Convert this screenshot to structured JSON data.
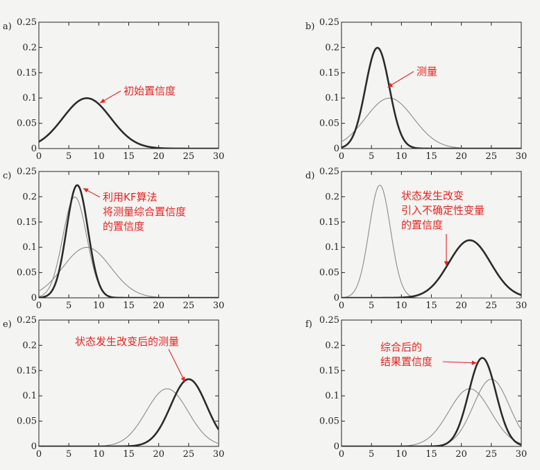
{
  "colors": {
    "annotation": "#e8231f",
    "thick": "#2b2b2b",
    "thin": "#8a8a8a"
  },
  "chart_data": [
    {
      "type": "line",
      "panel_label": "a)",
      "xlim": [
        0,
        30
      ],
      "ylim": [
        0,
        0.25
      ],
      "xticks": [
        "0",
        "5",
        "10",
        "15",
        "20",
        "25",
        "30"
      ],
      "yticks": [
        "0",
        "0.05",
        "0.1",
        "0.15",
        "0.2",
        "0.25"
      ],
      "series": [
        {
          "style": "thick",
          "mean": 8,
          "sd": 4
        }
      ],
      "annotations": [
        {
          "lines": [
            "初始置信度"
          ],
          "target_x": 10,
          "target_y": 0.089
        }
      ]
    },
    {
      "type": "line",
      "panel_label": "b)",
      "xlim": [
        0,
        30
      ],
      "ylim": [
        0,
        0.25
      ],
      "xticks": [
        "0",
        "5",
        "10",
        "15",
        "20",
        "25",
        "30"
      ],
      "yticks": [
        "0",
        "0.05",
        "0.1",
        "0.15",
        "0.2",
        "0.25"
      ],
      "series": [
        {
          "style": "thin",
          "mean": 8,
          "sd": 4
        },
        {
          "style": "thick",
          "mean": 6,
          "sd": 2
        }
      ],
      "annotations": [
        {
          "lines": [
            "测量"
          ],
          "target_x": 7.5,
          "target_y": 0.12
        }
      ]
    },
    {
      "type": "line",
      "panel_label": "c)",
      "xlim": [
        0,
        30
      ],
      "ylim": [
        0,
        0.25
      ],
      "xticks": [
        "0",
        "5",
        "10",
        "15",
        "20",
        "25",
        "30"
      ],
      "yticks": [
        "0",
        "0.05",
        "0.1",
        "0.15",
        "0.2",
        "0.25"
      ],
      "series": [
        {
          "style": "thin",
          "mean": 8,
          "sd": 4
        },
        {
          "style": "thin",
          "mean": 6,
          "sd": 2
        },
        {
          "style": "thick",
          "mean": 6.4,
          "sd": 1.79
        }
      ],
      "annotations": [
        {
          "lines": [
            "利用KF算法",
            "将测量综合置信度",
            "的置信度"
          ],
          "target_x": 7.2,
          "target_y": 0.218
        }
      ]
    },
    {
      "type": "line",
      "panel_label": "d)",
      "xlim": [
        0,
        30
      ],
      "ylim": [
        0,
        0.25
      ],
      "xticks": [
        "0",
        "5",
        "10",
        "15",
        "20",
        "25",
        "30"
      ],
      "yticks": [
        "0",
        "0.05",
        "0.1",
        "0.15",
        "0.2",
        "0.25"
      ],
      "series": [
        {
          "style": "thin",
          "mean": 6.4,
          "sd": 1.79
        },
        {
          "style": "thick",
          "mean": 21.4,
          "sd": 3.5
        }
      ],
      "annotations": [
        {
          "lines": [
            "状态发生改变",
            "引入不确定性变量",
            "的置信度"
          ],
          "target_x": 17.5,
          "target_y": 0.06
        }
      ]
    },
    {
      "type": "line",
      "panel_label": "e)",
      "xlim": [
        0,
        30
      ],
      "ylim": [
        0,
        0.25
      ],
      "xticks": [
        "0",
        "5",
        "10",
        "15",
        "20",
        "25",
        "30"
      ],
      "yticks": [
        "0",
        "0.05",
        "0.1",
        "0.15",
        "0.2",
        "0.25"
      ],
      "series": [
        {
          "style": "thin",
          "mean": 21.4,
          "sd": 3.5
        },
        {
          "style": "thick",
          "mean": 25,
          "sd": 3
        }
      ],
      "annotations": [
        {
          "lines": [
            "状态发生改变后的测量"
          ],
          "target_x": 24.5,
          "target_y": 0.125
        }
      ]
    },
    {
      "type": "line",
      "panel_label": "f)",
      "xlim": [
        0,
        30
      ],
      "ylim": [
        0,
        0.25
      ],
      "xticks": [
        "0",
        "5",
        "10",
        "15",
        "20",
        "25",
        "30"
      ],
      "yticks": [
        "0",
        "0.05",
        "0.1",
        "0.15",
        "0.2",
        "0.25"
      ],
      "series": [
        {
          "style": "thin",
          "mean": 21.4,
          "sd": 3.5
        },
        {
          "style": "thin",
          "mean": 25,
          "sd": 3
        },
        {
          "style": "thick",
          "mean": 23.5,
          "sd": 2.28
        }
      ],
      "annotations": [
        {
          "lines": [
            "综合后的",
            "结果置信度"
          ],
          "target_x": 22.8,
          "target_y": 0.165
        }
      ]
    }
  ]
}
